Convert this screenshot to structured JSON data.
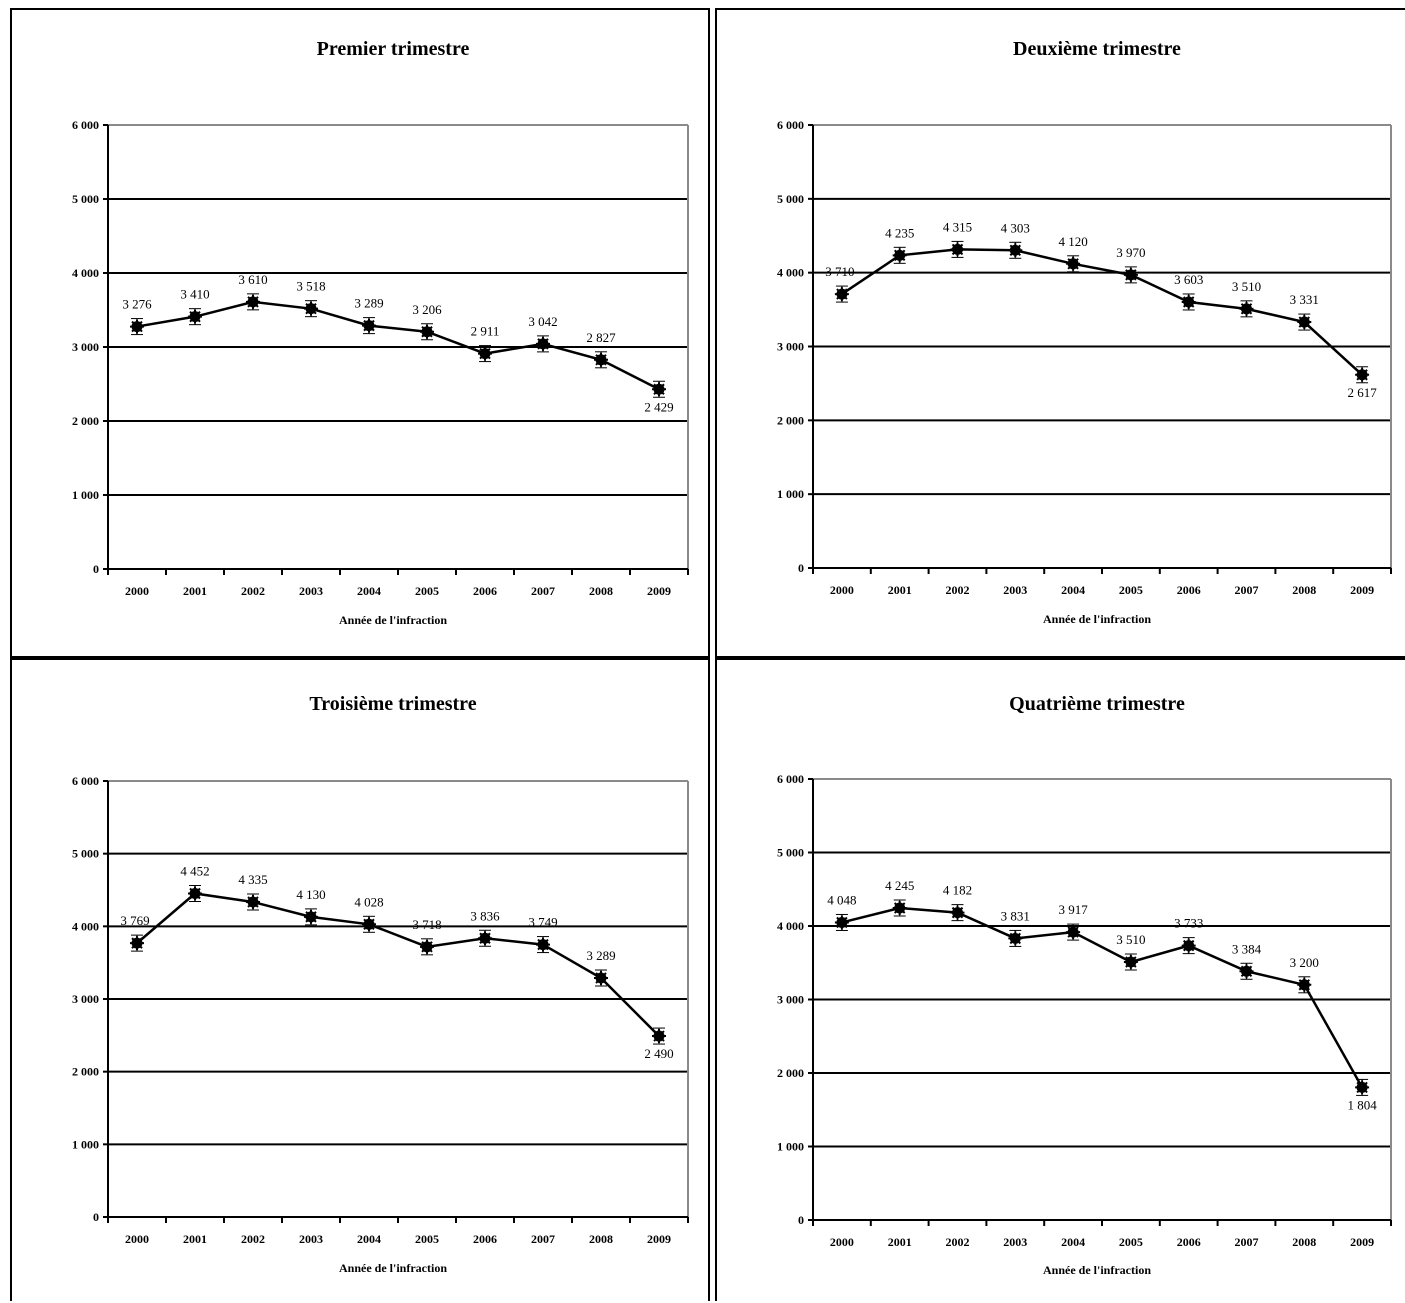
{
  "chart_data": [
    {
      "type": "line",
      "title": "Premier trimestre",
      "xlabel": "Année de l'infraction",
      "categories": [
        "2000",
        "2001",
        "2002",
        "2003",
        "2004",
        "2005",
        "2006",
        "2007",
        "2008",
        "2009"
      ],
      "values": [
        3276,
        3410,
        3610,
        3518,
        3289,
        3206,
        2911,
        3042,
        2827,
        2429
      ],
      "value_labels": [
        "3 276",
        "3 410",
        "3 610",
        "3 518",
        "3 289",
        "3 206",
        "2 911",
        "3 042",
        "2 827",
        "2 429"
      ],
      "yticks": [
        "0",
        "1 000",
        "2 000",
        "3 000",
        "4 000",
        "5 000",
        "6 000"
      ],
      "ylim": [
        0,
        6000
      ],
      "grid": true
    },
    {
      "type": "line",
      "title": "Deuxième trimestre",
      "xlabel": "Année de l'infraction",
      "categories": [
        "2000",
        "2001",
        "2002",
        "2003",
        "2004",
        "2005",
        "2006",
        "2007",
        "2008",
        "2009"
      ],
      "values": [
        3710,
        4235,
        4315,
        4303,
        4120,
        3970,
        3603,
        3510,
        3331,
        2617
      ],
      "value_labels": [
        "3 710",
        "4 235",
        "4 315",
        "4 303",
        "4 120",
        "3 970",
        "3 603",
        "3 510",
        "3 331",
        "2 617"
      ],
      "yticks": [
        "0",
        "1 000",
        "2 000",
        "3 000",
        "4 000",
        "5 000",
        "6 000"
      ],
      "ylim": [
        0,
        6000
      ],
      "grid": true
    },
    {
      "type": "line",
      "title": "Troisième trimestre",
      "xlabel": "Année de l'infraction",
      "categories": [
        "2000",
        "2001",
        "2002",
        "2003",
        "2004",
        "2005",
        "2006",
        "2007",
        "2008",
        "2009"
      ],
      "values": [
        3769,
        4452,
        4335,
        4130,
        4028,
        3718,
        3836,
        3749,
        3289,
        2490
      ],
      "value_labels": [
        "3 769",
        "4 452",
        "4 335",
        "4 130",
        "4 028",
        "3 718",
        "3 836",
        "3 749",
        "3 289",
        "2 490"
      ],
      "yticks": [
        "0",
        "1 000",
        "2 000",
        "3 000",
        "4 000",
        "5 000",
        "6 000"
      ],
      "ylim": [
        0,
        6000
      ],
      "grid": true
    },
    {
      "type": "line",
      "title": "Quatrième trimestre",
      "xlabel": "Année de l'infraction",
      "categories": [
        "2000",
        "2001",
        "2002",
        "2003",
        "2004",
        "2005",
        "2006",
        "2007",
        "2008",
        "2009"
      ],
      "values": [
        4048,
        4245,
        4182,
        3831,
        3917,
        3510,
        3733,
        3384,
        3200,
        1804
      ],
      "value_labels": [
        "4 048",
        "4 245",
        "4 182",
        "3 831",
        "3 917",
        "3 510",
        "3 733",
        "3 384",
        "3 200",
        "1 804"
      ],
      "yticks": [
        "0",
        "1 000",
        "2 000",
        "3 000",
        "4 000",
        "5 000",
        "6 000"
      ],
      "ylim": [
        0,
        6000
      ],
      "grid": true
    }
  ]
}
